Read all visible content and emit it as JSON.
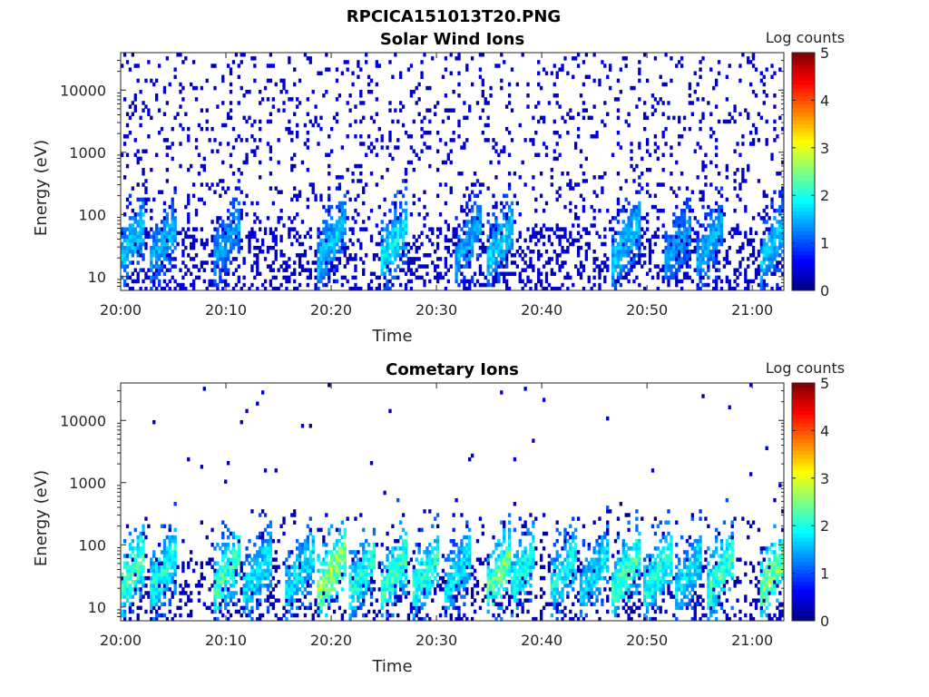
{
  "figure_title": "RPCICA151013T20.PNG",
  "colormap": [
    "#00007f",
    "#0000ff",
    "#007fff",
    "#00ffff",
    "#7fff7f",
    "#ffff00",
    "#ff7f00",
    "#ff0000",
    "#7f0000"
  ],
  "chart_data": [
    {
      "type": "heatmap",
      "title": "Solar Wind Ions",
      "xlabel": "Time",
      "ylabel": "Energy (eV)",
      "x_ticks": [
        "20:00",
        "20:10",
        "20:20",
        "20:30",
        "20:40",
        "20:50",
        "21:00"
      ],
      "x_range": [
        "20:00",
        "21:03"
      ],
      "y_scale": "log",
      "y_ticks": [
        10,
        100,
        1000,
        10000
      ],
      "y_tick_labels": [
        "10",
        "100",
        "1000",
        "10000"
      ],
      "y_range": [
        6,
        40000
      ],
      "colorbar": {
        "label": "Log counts",
        "range": [
          0,
          5
        ],
        "ticks": [
          "0",
          "1",
          "2",
          "3",
          "4",
          "5"
        ]
      },
      "bursts": [
        {
          "t": "20:01",
          "log_counts": 1.6
        },
        {
          "t": "20:04",
          "log_counts": 1.5
        },
        {
          "t": "20:10",
          "log_counts": 1.4
        },
        {
          "t": "20:20",
          "log_counts": 1.6
        },
        {
          "t": "20:26",
          "log_counts": 1.8
        },
        {
          "t": "20:33",
          "log_counts": 1.5
        },
        {
          "t": "20:36",
          "log_counts": 1.7
        },
        {
          "t": "20:48",
          "log_counts": 1.6
        },
        {
          "t": "20:53",
          "log_counts": 1.4
        },
        {
          "t": "20:56",
          "log_counts": 1.5
        },
        {
          "t": "21:02",
          "log_counts": 1.6
        }
      ],
      "background_log_counts": 0.2
    },
    {
      "type": "heatmap",
      "title": "Cometary Ions",
      "xlabel": "Time",
      "ylabel": "Energy (eV)",
      "x_ticks": [
        "20:00",
        "20:10",
        "20:20",
        "20:30",
        "20:40",
        "20:50",
        "21:00"
      ],
      "x_range": [
        "20:00",
        "21:03"
      ],
      "y_scale": "log",
      "y_ticks": [
        10,
        100,
        1000,
        10000
      ],
      "y_tick_labels": [
        "10",
        "100",
        "1000",
        "10000"
      ],
      "y_range": [
        6,
        40000
      ],
      "colorbar": {
        "label": "Log counts",
        "range": [
          0,
          5
        ],
        "ticks": [
          "0",
          "1",
          "2",
          "3",
          "4",
          "5"
        ]
      },
      "bursts": [
        {
          "t": "20:01",
          "log_counts": 2.3
        },
        {
          "t": "20:04",
          "log_counts": 2.0
        },
        {
          "t": "20:10",
          "log_counts": 2.2
        },
        {
          "t": "20:13",
          "log_counts": 1.8
        },
        {
          "t": "20:17",
          "log_counts": 1.8
        },
        {
          "t": "20:20",
          "log_counts": 2.6
        },
        {
          "t": "20:23",
          "log_counts": 2.0
        },
        {
          "t": "20:26",
          "log_counts": 2.2
        },
        {
          "t": "20:29",
          "log_counts": 2.1
        },
        {
          "t": "20:32",
          "log_counts": 1.8
        },
        {
          "t": "20:36",
          "log_counts": 2.4
        },
        {
          "t": "20:38",
          "log_counts": 2.0
        },
        {
          "t": "20:42",
          "log_counts": 1.9
        },
        {
          "t": "20:45",
          "log_counts": 1.8
        },
        {
          "t": "20:48",
          "log_counts": 2.2
        },
        {
          "t": "20:51",
          "log_counts": 2.0
        },
        {
          "t": "20:54",
          "log_counts": 1.8
        },
        {
          "t": "20:57",
          "log_counts": 2.2
        },
        {
          "t": "21:02",
          "log_counts": 2.5
        }
      ],
      "background_log_counts": 0.1
    }
  ]
}
